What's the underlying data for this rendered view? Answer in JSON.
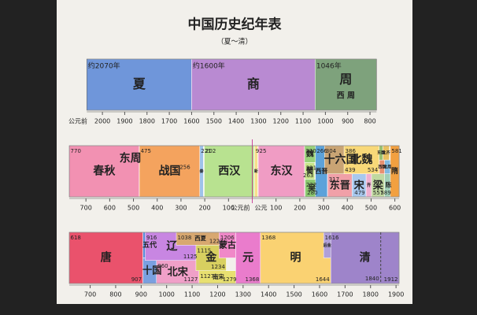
{
  "header": {
    "title": "中国历史纪年表",
    "subtitle": "（夏～清）"
  },
  "rows": [
    {
      "notes": [
        "公元前"
      ],
      "ticks": [
        {
          "value": -2000,
          "label": "2000"
        },
        {
          "value": -1900,
          "label": "1900"
        },
        {
          "value": -1800,
          "label": "1800"
        },
        {
          "value": -1700,
          "label": "1700"
        },
        {
          "value": -1600,
          "label": "1600"
        },
        {
          "value": -1500,
          "label": "1500"
        },
        {
          "value": -1400,
          "label": "1400"
        },
        {
          "value": -1300,
          "label": "1300"
        },
        {
          "value": -1200,
          "label": "1200"
        },
        {
          "value": -1100,
          "label": "1100"
        },
        {
          "value": -1000,
          "label": "1000"
        },
        {
          "value": -900,
          "label": "900"
        },
        {
          "value": -800,
          "label": "800"
        }
      ],
      "blocks": [
        {
          "name": "夏",
          "start": -2070,
          "end": -1600,
          "color": "#6f96da",
          "start_label": "约2070年"
        },
        {
          "name": "商",
          "start": -1600,
          "end": -1046,
          "color": "#b98ad2",
          "start_label": "约1600年"
        },
        {
          "name": "周",
          "start": -1046,
          "end": -771,
          "color": "#7ea27c",
          "start_label": "1046年",
          "sub": "西 周"
        }
      ]
    },
    {
      "notes": [
        "公元前",
        "公元"
      ],
      "ticks": [
        {
          "value": -700,
          "label": "700"
        },
        {
          "value": -600,
          "label": "600"
        },
        {
          "value": -500,
          "label": "500"
        },
        {
          "value": -400,
          "label": "400"
        },
        {
          "value": -300,
          "label": "300"
        },
        {
          "value": -200,
          "label": "200"
        },
        {
          "value": -100,
          "label": "100"
        },
        100,
        200,
        300,
        400,
        500,
        600
      ],
      "blocks": [
        {
          "name": "东周",
          "start": -770,
          "end": -256,
          "color": "#b0506e",
          "start_label": "770",
          "end_label": "256"
        },
        {
          "name": "春秋",
          "start": -770,
          "end": -476,
          "color": "#f291b2"
        },
        {
          "name": "战国",
          "start": -475,
          "end": -221,
          "color": "#f4a35e",
          "start_label": "475"
        },
        {
          "name": "秦",
          "start": -221,
          "end": -206,
          "color": "#9ec2ea",
          "start_label": "221"
        },
        {
          "name": "西汉",
          "start": -202,
          "end": 8,
          "color": "#b8e290",
          "start_label": "202"
        },
        {
          "name": "新",
          "start": 9,
          "end": 23,
          "color": "#f6e08c",
          "start_label": "9"
        },
        {
          "name": "东汉",
          "start": 25,
          "end": 220,
          "color": "#f09cc4",
          "start_label": "25"
        },
        {
          "name": "魏",
          "start": 220,
          "end": 266,
          "color": "#9ad07a",
          "start_label": "220"
        },
        {
          "name": "蜀",
          "start": 221,
          "end": 263,
          "color": "#c8e48a",
          "start_label": "221",
          "end_label": "263"
        },
        {
          "name": "吴",
          "start": 222,
          "end": 280,
          "color": "#8cc870",
          "start_label": "222",
          "end_label": "280"
        },
        {
          "name": "西晋",
          "start": 266,
          "end": 316,
          "color": "#5ca2da",
          "start_label": "266"
        },
        {
          "name": "十六国",
          "start": 304,
          "end": 439,
          "color": "#c9a474",
          "start_label": "304",
          "end_label": "439"
        },
        {
          "name": "东晋",
          "start": 317,
          "end": 420,
          "color": "#f0a0a8",
          "start_label": "317"
        },
        {
          "name": "北魏",
          "start": 386,
          "end": 534,
          "color": "#f8d878",
          "start_label": "386",
          "end_label": "534"
        },
        {
          "name": "宋",
          "start": 420,
          "end": 479,
          "color": "#a8c8ee",
          "end_label": "479"
        },
        {
          "name": "齐",
          "start": 479,
          "end": 502,
          "color": "#f0b0d0"
        },
        {
          "name": "梁",
          "start": 502,
          "end": 557,
          "color": "#c0d8a0",
          "end_label": "557"
        },
        {
          "name": "东魏",
          "start": 534,
          "end": 550,
          "color": "#98c070"
        },
        {
          "name": "北齐",
          "start": 550,
          "end": 577,
          "color": "#e8c060"
        },
        {
          "name": "西魏",
          "start": 535,
          "end": 557,
          "color": "#e89070"
        },
        {
          "name": "北周",
          "start": 557,
          "end": 581,
          "color": "#80b8e0"
        },
        {
          "name": "陈",
          "start": 557,
          "end": 589,
          "color": "#a0d0b8",
          "end_label": "589"
        },
        {
          "name": "隋",
          "start": 581,
          "end": 618,
          "color": "#f2a040",
          "start_label": "581"
        }
      ]
    },
    {
      "notes": [],
      "ticks": [
        700,
        800,
        900,
        1000,
        1100,
        1200,
        1300,
        1400,
        1500,
        1600,
        1700,
        1800,
        1900
      ],
      "markers": [
        {
          "value": 1840,
          "label": "1840"
        }
      ],
      "blocks": [
        {
          "name": "唐",
          "start": 618,
          "end": 907,
          "color": "#ea526c",
          "start_label": "618",
          "end_label": "907"
        },
        {
          "name": "五代",
          "start": 907,
          "end": 960,
          "color": "#5a8ad8"
        },
        {
          "name": "十国",
          "start": 907,
          "end": 979,
          "color": "#7aa0e0"
        },
        {
          "name": "辽",
          "start": 916,
          "end": 1125,
          "color": "#c886e2",
          "start_label": "916",
          "end_label": "1125"
        },
        {
          "name": "北宋",
          "start": 960,
          "end": 1127,
          "color": "#f0a0c8",
          "start_label": "960",
          "end_label": "1127"
        },
        {
          "name": "西夏",
          "start": 1038,
          "end": 1227,
          "color": "#d8a870",
          "start_label": "1038",
          "end_label": "1227"
        },
        {
          "name": "金",
          "start": 1115,
          "end": 1234,
          "color": "#d8d060",
          "start_label": "1115",
          "end_label": "1234"
        },
        {
          "name": "南宋",
          "start": 1127,
          "end": 1279,
          "color": "#e8e070",
          "start_label": "1127",
          "end_label": "1279"
        },
        {
          "name": "蒙古",
          "start": 1206,
          "end": 1271,
          "color": "#f088c8",
          "start_label": "1206"
        },
        {
          "name": "元",
          "start": 1271,
          "end": 1368,
          "color": "#ea7ccc",
          "end_label": "1368"
        },
        {
          "name": "明",
          "start": 1368,
          "end": 1644,
          "color": "#fad272",
          "start_label": "1368",
          "end_label": "1644"
        },
        {
          "name": "后金",
          "start": 1616,
          "end": 1644,
          "color": "#b0a0d8",
          "start_label": "1616"
        },
        {
          "name": "清",
          "start": 1644,
          "end": 1912,
          "color": "#9e84ca",
          "end_label": "1912"
        }
      ]
    }
  ]
}
